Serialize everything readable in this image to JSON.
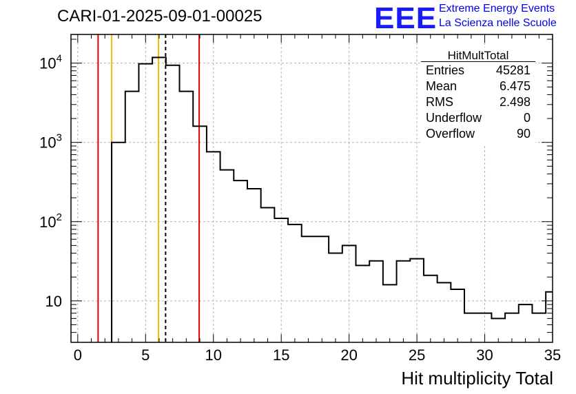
{
  "chart_data": {
    "type": "histogram",
    "title": "CARI-01-2025-09-01-00025",
    "xlabel": "Hit multiplicity Total",
    "ylabel": "",
    "yscale": "log",
    "xlim": [
      -0.5,
      35
    ],
    "ylim": [
      3,
      23000
    ],
    "bin_width": 1,
    "x_ticks": [
      0,
      5,
      10,
      15,
      20,
      25,
      30,
      35
    ],
    "y_ticks": [
      {
        "value": 10,
        "base": "10",
        "exp": ""
      },
      {
        "value": 100,
        "base": "10",
        "exp": "2"
      },
      {
        "value": 1000,
        "base": "10",
        "exp": "3"
      },
      {
        "value": 10000,
        "base": "10",
        "exp": "4"
      }
    ],
    "bins": [
      {
        "low": 2.5,
        "high": 3.5,
        "count": 1000
      },
      {
        "low": 3.5,
        "high": 4.5,
        "count": 4400
      },
      {
        "low": 4.5,
        "high": 5.5,
        "count": 9800
      },
      {
        "low": 5.5,
        "high": 6.5,
        "count": 11800
      },
      {
        "low": 6.5,
        "high": 7.5,
        "count": 9400
      },
      {
        "low": 7.5,
        "high": 8.5,
        "count": 4400
      },
      {
        "low": 8.5,
        "high": 9.5,
        "count": 1600
      },
      {
        "low": 9.5,
        "high": 10.5,
        "count": 760
      },
      {
        "low": 10.5,
        "high": 11.5,
        "count": 450
      },
      {
        "low": 11.5,
        "high": 12.5,
        "count": 330
      },
      {
        "low": 12.5,
        "high": 13.5,
        "count": 260
      },
      {
        "low": 13.5,
        "high": 14.5,
        "count": 150
      },
      {
        "low": 14.5,
        "high": 15.5,
        "count": 110
      },
      {
        "low": 15.5,
        "high": 16.5,
        "count": 92
      },
      {
        "low": 16.5,
        "high": 17.5,
        "count": 65
      },
      {
        "low": 17.5,
        "high": 18.5,
        "count": 65
      },
      {
        "low": 18.5,
        "high": 19.5,
        "count": 40
      },
      {
        "low": 19.5,
        "high": 20.5,
        "count": 50
      },
      {
        "low": 20.5,
        "high": 21.5,
        "count": 28
      },
      {
        "low": 21.5,
        "high": 22.5,
        "count": 32
      },
      {
        "low": 22.5,
        "high": 23.5,
        "count": 16
      },
      {
        "low": 23.5,
        "high": 24.5,
        "count": 32
      },
      {
        "low": 24.5,
        "high": 25.5,
        "count": 34
      },
      {
        "low": 25.5,
        "high": 26.5,
        "count": 21
      },
      {
        "low": 26.5,
        "high": 27.5,
        "count": 17
      },
      {
        "low": 27.5,
        "high": 28.5,
        "count": 14
      },
      {
        "low": 28.5,
        "high": 29.5,
        "count": 7
      },
      {
        "low": 29.5,
        "high": 30.5,
        "count": 7
      },
      {
        "low": 30.5,
        "high": 31.5,
        "count": 6
      },
      {
        "low": 31.5,
        "high": 32.5,
        "count": 7
      },
      {
        "low": 32.5,
        "high": 33.5,
        "count": 9
      },
      {
        "low": 33.5,
        "high": 34.5,
        "count": 7
      },
      {
        "low": 34.5,
        "high": 35.5,
        "count": 13
      }
    ],
    "vertical_lines": [
      {
        "x": 1.5,
        "color": "#e00000",
        "style": "solid"
      },
      {
        "x": 2.5,
        "color": "#f0c000",
        "style": "solid"
      },
      {
        "x": 5.95,
        "color": "#f0c000",
        "style": "solid"
      },
      {
        "x": 6.475,
        "color": "#000000",
        "style": "dashed"
      },
      {
        "x": 8.95,
        "color": "#e00000",
        "style": "solid"
      }
    ],
    "stats_box": {
      "title": "HitMultTotal",
      "rows": [
        {
          "label": "Entries",
          "value": "45281"
        },
        {
          "label": "Mean",
          "value": "6.475"
        },
        {
          "label": "RMS",
          "value": "2.498"
        },
        {
          "label": "Underflow",
          "value": "0"
        },
        {
          "label": "Overflow",
          "value": "90"
        }
      ]
    }
  },
  "header": {
    "logo_text": "EEE",
    "subtitle_line1": "Extreme Energy Events",
    "subtitle_line2": "La Scienza nelle Scuole"
  },
  "colors": {
    "logo_blue": "#1a1aff",
    "subtitle_blue": "#0000ee",
    "histogram": "#000000",
    "grid": "#b0b0b0"
  }
}
